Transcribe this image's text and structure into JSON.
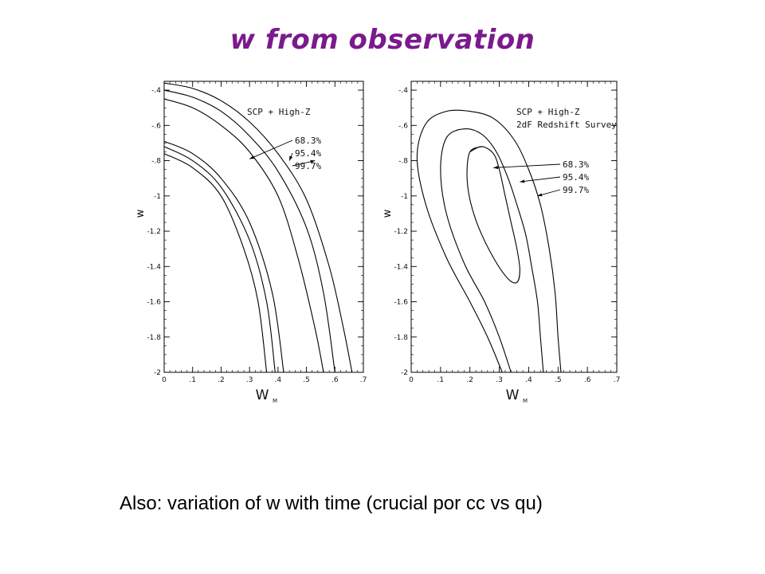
{
  "slide": {
    "title": "w from observation",
    "caption": "Also: variation of w with time (crucial por cc vs qu)"
  },
  "chart_data": [
    {
      "type": "contour",
      "datasets": [
        "SCP + High-Z"
      ],
      "xlabel": "W",
      "xlabel_sub": "M",
      "ylabel": "w",
      "xlim": [
        0,
        0.7
      ],
      "ylim": [
        -2,
        -0.35
      ],
      "xticks": [
        0,
        0.1,
        0.2,
        0.3,
        0.4,
        0.5,
        0.6,
        0.7
      ],
      "xtick_labels": [
        "0",
        ".1",
        ".2",
        ".3",
        ".4",
        ".5",
        ".6",
        ".7"
      ],
      "yticks": [
        -2,
        -1.8,
        -1.6,
        -1.4,
        -1.2,
        -1,
        -0.8,
        -0.6,
        -0.4
      ],
      "ytick_labels": [
        "-2",
        "-1.8",
        "-1.6",
        "-1.4",
        "-1.2",
        "-1",
        "-.8",
        "-.6",
        "-.4"
      ],
      "levels": [
        "68.3%",
        "95.4%",
        "99.7%"
      ],
      "contours": [
        {
          "level": "68.3%",
          "points": [
            [
              0,
              -0.76
            ],
            [
              0.1,
              -0.84
            ],
            [
              0.2,
              -1.0
            ],
            [
              0.28,
              -1.3
            ],
            [
              0.33,
              -1.6
            ],
            [
              0.36,
              -2.0
            ]
          ]
        },
        {
          "level": "68.3%",
          "points": [
            [
              0,
              -0.45
            ],
            [
              0.1,
              -0.5
            ],
            [
              0.2,
              -0.6
            ],
            [
              0.3,
              -0.75
            ],
            [
              0.4,
              -1.0
            ],
            [
              0.47,
              -1.35
            ],
            [
              0.53,
              -1.75
            ],
            [
              0.56,
              -2.0
            ]
          ]
        },
        {
          "level": "95.4%",
          "points": [
            [
              0,
              -0.72
            ],
            [
              0.1,
              -0.8
            ],
            [
              0.2,
              -0.95
            ],
            [
              0.3,
              -1.25
            ],
            [
              0.36,
              -1.6
            ],
            [
              0.39,
              -2.0
            ]
          ]
        },
        {
          "level": "95.4%",
          "points": [
            [
              0,
              -0.4
            ],
            [
              0.1,
              -0.44
            ],
            [
              0.2,
              -0.52
            ],
            [
              0.3,
              -0.66
            ],
            [
              0.4,
              -0.86
            ],
            [
              0.5,
              -1.18
            ],
            [
              0.56,
              -1.55
            ],
            [
              0.6,
              -2.0
            ]
          ]
        },
        {
          "level": "99.7%",
          "points": [
            [
              0,
              -0.69
            ],
            [
              0.1,
              -0.76
            ],
            [
              0.2,
              -0.9
            ],
            [
              0.3,
              -1.15
            ],
            [
              0.38,
              -1.55
            ],
            [
              0.42,
              -2.0
            ]
          ]
        },
        {
          "level": "99.7%",
          "points": [
            [
              0,
              -0.36
            ],
            [
              0.1,
              -0.39
            ],
            [
              0.2,
              -0.46
            ],
            [
              0.3,
              -0.58
            ],
            [
              0.4,
              -0.76
            ],
            [
              0.5,
              -1.02
            ],
            [
              0.58,
              -1.4
            ],
            [
              0.63,
              -1.75
            ],
            [
              0.66,
              -2.0
            ]
          ]
        }
      ]
    },
    {
      "type": "contour",
      "datasets": [
        "SCP + High-Z",
        "2dF Redshift Survey"
      ],
      "xlabel": "W",
      "xlabel_sub": "M",
      "ylabel": "w",
      "xlim": [
        0,
        0.7
      ],
      "ylim": [
        -2,
        -0.35
      ],
      "xticks": [
        0,
        0.1,
        0.2,
        0.3,
        0.4,
        0.5,
        0.6,
        0.7
      ],
      "xtick_labels": [
        "0",
        ".1",
        ".2",
        ".3",
        ".4",
        ".5",
        ".6",
        ".7"
      ],
      "yticks": [
        -2,
        -1.8,
        -1.6,
        -1.4,
        -1.2,
        -1,
        -0.8,
        -0.6,
        -0.4
      ],
      "ytick_labels": [
        "-2",
        "-1.8",
        "-1.6",
        "-1.4",
        "-1.2",
        "-1",
        "-.8",
        "-.6",
        "-.4"
      ],
      "levels": [
        "68.3%",
        "95.4%",
        "99.7%"
      ],
      "contours": [
        {
          "level": "68.3%",
          "closed": true,
          "points": [
            [
              0.2,
              -0.75
            ],
            [
              0.24,
              -0.72
            ],
            [
              0.28,
              -0.76
            ],
            [
              0.3,
              -0.85
            ],
            [
              0.32,
              -1.0
            ],
            [
              0.34,
              -1.15
            ],
            [
              0.36,
              -1.3
            ],
            [
              0.37,
              -1.42
            ],
            [
              0.36,
              -1.49
            ],
            [
              0.33,
              -1.47
            ],
            [
              0.28,
              -1.35
            ],
            [
              0.23,
              -1.18
            ],
            [
              0.2,
              -1.02
            ],
            [
              0.19,
              -0.88
            ]
          ]
        },
        {
          "level": "95.4%",
          "points": [
            [
              0.34,
              -2.0
            ],
            [
              0.3,
              -1.8
            ],
            [
              0.25,
              -1.6
            ],
            [
              0.18,
              -1.38
            ],
            [
              0.12,
              -1.1
            ],
            [
              0.1,
              -0.85
            ],
            [
              0.12,
              -0.67
            ],
            [
              0.18,
              -0.62
            ],
            [
              0.24,
              -0.65
            ],
            [
              0.29,
              -0.75
            ],
            [
              0.33,
              -0.9
            ],
            [
              0.36,
              -1.05
            ],
            [
              0.39,
              -1.22
            ],
            [
              0.41,
              -1.4
            ],
            [
              0.43,
              -1.6
            ],
            [
              0.44,
              -1.8
            ],
            [
              0.45,
              -2.0
            ]
          ]
        },
        {
          "level": "99.7%",
          "points": [
            [
              0.31,
              -2.0
            ],
            [
              0.26,
              -1.8
            ],
            [
              0.2,
              -1.6
            ],
            [
              0.12,
              -1.35
            ],
            [
              0.05,
              -1.05
            ],
            [
              0.02,
              -0.78
            ],
            [
              0.05,
              -0.59
            ],
            [
              0.12,
              -0.52
            ],
            [
              0.2,
              -0.52
            ],
            [
              0.28,
              -0.56
            ],
            [
              0.35,
              -0.68
            ],
            [
              0.4,
              -0.85
            ],
            [
              0.44,
              -1.05
            ],
            [
              0.47,
              -1.3
            ],
            [
              0.49,
              -1.55
            ],
            [
              0.5,
              -1.8
            ],
            [
              0.51,
              -2.0
            ]
          ]
        }
      ]
    }
  ]
}
